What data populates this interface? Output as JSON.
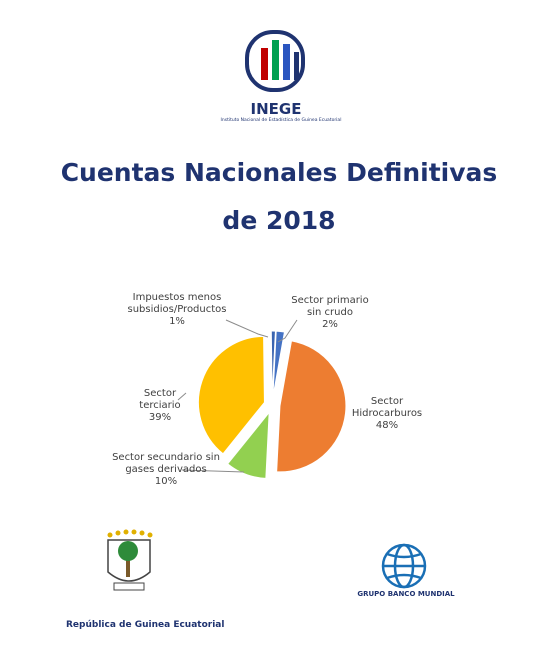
{
  "header": {
    "logo_text": "INEGE",
    "logo_subtitle": "Instituto Nacional de Estadística de Guinea Ecuatorial"
  },
  "title": [
    "Cuentas Nacionales Definitivas",
    "de 2018"
  ],
  "chart_data": {
    "type": "pie",
    "categories": [
      "Sector primario sin crudo",
      "Sector Hidrocarburos",
      "Sector secundario sin gases derivados",
      "Sector terciario",
      "Impuestos menos subsidios/Productos"
    ],
    "values": [
      2,
      48,
      10,
      39,
      1
    ],
    "value_labels": [
      "2%",
      "48%",
      "10%",
      "39%",
      "1%"
    ],
    "colors": [
      "#4472c4",
      "#ed7d31",
      "#92d050",
      "#ffc000",
      "#3a64b0"
    ]
  },
  "footer": {
    "left_caption": "República de Guinea Ecuatorial",
    "right_caption": "GRUPO BANCO MUNDIAL"
  }
}
